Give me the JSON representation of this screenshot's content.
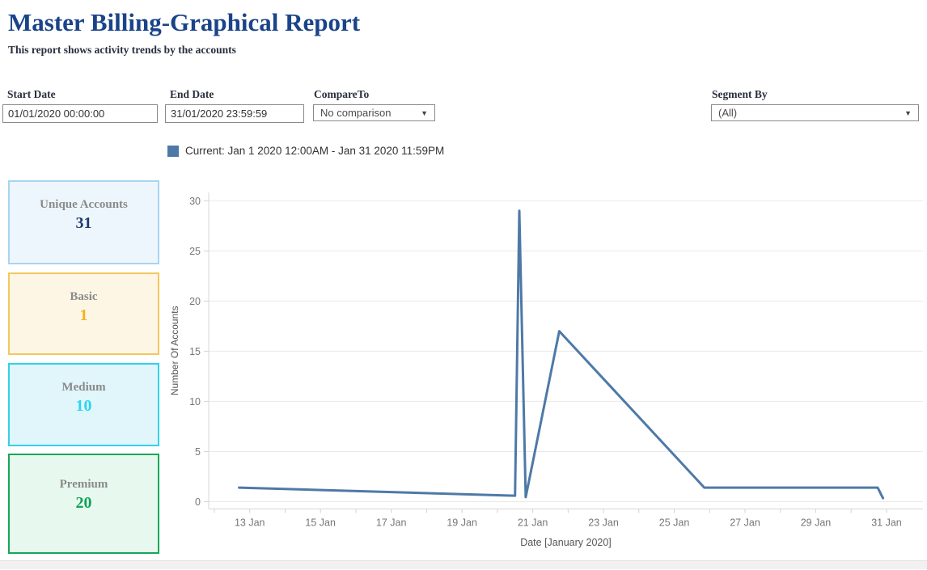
{
  "header": {
    "title": "Master Billing-Graphical Report",
    "subtitle": "This report shows activity trends by the accounts"
  },
  "filters": {
    "start_date": {
      "label": "Start Date",
      "value": "01/01/2020 00:00:00"
    },
    "end_date": {
      "label": "End Date",
      "value": "31/01/2020 23:59:59"
    },
    "compare_to": {
      "label": "CompareTo",
      "value": "No comparison"
    },
    "segment_by": {
      "label": "Segment By",
      "value": "(All)"
    }
  },
  "legend": {
    "swatch_color": "#4e79a7",
    "label": "Current: Jan 1 2020 12:00AM - Jan 31 2020 11:59PM"
  },
  "cards": [
    {
      "label": "Unique Accounts",
      "value": "31",
      "bg": "#edf6fc",
      "border": "#a7d4f1",
      "value_color": "#1f3a6e"
    },
    {
      "label": "Basic",
      "value": "1",
      "bg": "#fdf6e4",
      "border": "#f3c75d",
      "value_color": "#f1b41c"
    },
    {
      "label": "Medium",
      "value": "10",
      "bg": "#e0f6fb",
      "border": "#33d1ea",
      "value_color": "#2bd4f2"
    },
    {
      "label": "Premium",
      "value": "20",
      "bg": "#e7f9ef",
      "border": "#14a75a",
      "value_color": "#10a457"
    }
  ],
  "chart_data": {
    "type": "line",
    "title": "",
    "xlabel": "Date [January 2020]",
    "ylabel": "Number Of Accounts",
    "grid": "horizontal",
    "legend_position": "top",
    "y_ticks": [
      0,
      5,
      10,
      15,
      20,
      25,
      30
    ],
    "y_domain": [
      0,
      31.6
    ],
    "x_domain": [
      11.84,
      32.03
    ],
    "x_ticks": [
      {
        "day": 13,
        "label": "13 Jan"
      },
      {
        "day": 15,
        "label": "15 Jan"
      },
      {
        "day": 17,
        "label": "17 Jan"
      },
      {
        "day": 19,
        "label": "19 Jan"
      },
      {
        "day": 21,
        "label": "21 Jan"
      },
      {
        "day": 23,
        "label": "23 Jan"
      },
      {
        "day": 25,
        "label": "25 Jan"
      },
      {
        "day": 27,
        "label": "27 Jan"
      },
      {
        "day": 29,
        "label": "29 Jan"
      },
      {
        "day": 31,
        "label": "31 Jan"
      }
    ],
    "x_minor_ticks": {
      "from": 12,
      "to": 31,
      "step": 1
    },
    "series": [
      {
        "name": "Current: Jan 1 2020 12:00AM - Jan 31 2020 11:59PM",
        "color": "#4e79a7",
        "points": [
          [
            12.7,
            1.4
          ],
          [
            20.5,
            0.6
          ],
          [
            20.62,
            29
          ],
          [
            20.8,
            0.45
          ],
          [
            21.75,
            17
          ],
          [
            25.85,
            1.4
          ],
          [
            30.75,
            1.4
          ],
          [
            30.9,
            0.35
          ]
        ]
      }
    ]
  }
}
